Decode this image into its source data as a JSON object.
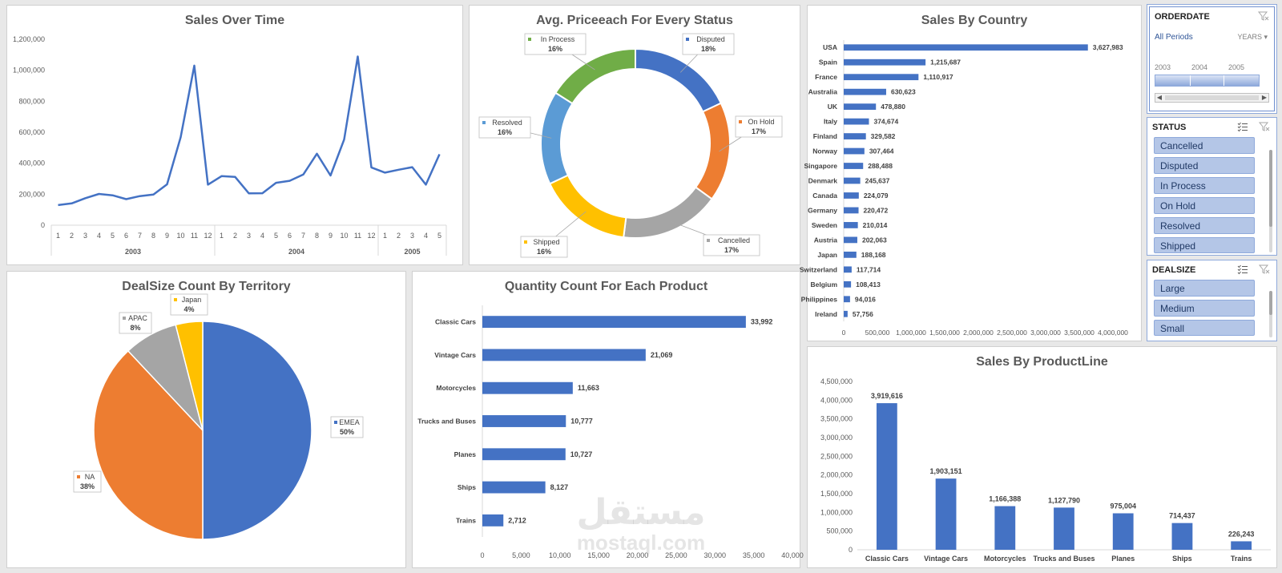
{
  "sales_over_time": {
    "title": "Sales Over Time",
    "type": "line",
    "color": "#4472c4",
    "yticks": [
      "0",
      "200,000",
      "400,000",
      "600,000",
      "800,000",
      "1,000,000",
      "1,200,000"
    ],
    "ylim": [
      0,
      1200000
    ],
    "months": [
      "1",
      "2",
      "3",
      "4",
      "5",
      "6",
      "7",
      "8",
      "9",
      "10",
      "11",
      "12",
      "1",
      "2",
      "3",
      "4",
      "5",
      "6",
      "7",
      "8",
      "9",
      "10",
      "11",
      "12",
      "1",
      "2",
      "3",
      "4",
      "5"
    ],
    "years": [
      {
        "label": "2003",
        "count": 12
      },
      {
        "label": "2004",
        "count": 12
      },
      {
        "label": "2005",
        "count": 5
      }
    ],
    "values": [
      129754,
      140837,
      174505,
      201610,
      192673,
      168083,
      187732,
      197810,
      263974,
      568291,
      1029838,
      261876,
      316577,
      311419,
      205734,
      206149,
      273438,
      286674,
      327144,
      461501,
      320751,
      552924,
      1089048,
      372803,
      339544,
      358186,
      374263,
      261634,
      457861
    ]
  },
  "avg_price_status": {
    "title": "Avg. Priceeach For Every Status",
    "type": "pie",
    "slices": [
      {
        "name": "Disputed",
        "pct": "18%",
        "value": 18,
        "color": "#4472c4"
      },
      {
        "name": "On Hold",
        "pct": "17%",
        "value": 17,
        "color": "#ed7d31"
      },
      {
        "name": "Cancelled",
        "pct": "17%",
        "value": 17,
        "color": "#a5a5a5"
      },
      {
        "name": "Shipped",
        "pct": "16%",
        "value": 16,
        "color": "#ffc000"
      },
      {
        "name": "Resolved",
        "pct": "16%",
        "value": 16,
        "color": "#5b9bd5"
      },
      {
        "name": "In Process",
        "pct": "16%",
        "value": 16,
        "color": "#70ad47"
      }
    ]
  },
  "sales_by_country": {
    "title": "Sales By Country",
    "type": "bar",
    "color": "#4472c4",
    "xlim": [
      0,
      4000000
    ],
    "xticks": [
      "0",
      "500,000",
      "1,000,000",
      "1,500,000",
      "2,000,000",
      "2,500,000",
      "3,000,000",
      "3,500,000",
      "4,000,000"
    ],
    "categories": [
      "USA",
      "Spain",
      "France",
      "Australia",
      "UK",
      "Italy",
      "Finland",
      "Norway",
      "Singapore",
      "Denmark",
      "Canada",
      "Germany",
      "Sweden",
      "Austria",
      "Japan",
      "Switzerland",
      "Belgium",
      "Philippines",
      "Ireland"
    ],
    "values": [
      3627983,
      1215687,
      1110917,
      630623,
      478880,
      374674,
      329582,
      307464,
      288488,
      245637,
      224079,
      220472,
      210014,
      202063,
      188168,
      117714,
      108413,
      94016,
      57756
    ],
    "labels": [
      "3,627,983",
      "1,215,687",
      "1,110,917",
      "630,623",
      "478,880",
      "374,674",
      "329,582",
      "307,464",
      "288,488",
      "245,637",
      "224,079",
      "220,472",
      "210,014",
      "202,063",
      "188,168",
      "117,714",
      "108,413",
      "94,016",
      "57,756"
    ]
  },
  "dealsize_territory": {
    "title": "DealSize Count By Territory",
    "type": "pie",
    "slices": [
      {
        "name": "EMEA",
        "pct": "50%",
        "value": 50,
        "color": "#4472c4"
      },
      {
        "name": "NA",
        "pct": "38%",
        "value": 38,
        "color": "#ed7d31"
      },
      {
        "name": "APAC",
        "pct": "8%",
        "value": 8,
        "color": "#a5a5a5"
      },
      {
        "name": "Japan",
        "pct": "4%",
        "value": 4,
        "color": "#ffc000"
      }
    ]
  },
  "quantity_product": {
    "title": "Quantity Count For Each Product",
    "type": "bar",
    "color": "#4472c4",
    "xlim": [
      0,
      40000
    ],
    "xticks": [
      "0",
      "5,000",
      "10,000",
      "15,000",
      "20,000",
      "25,000",
      "30,000",
      "35,000",
      "40,000"
    ],
    "categories": [
      "Classic Cars",
      "Vintage Cars",
      "Motorcycles",
      "Trucks and Buses",
      "Planes",
      "Ships",
      "Trains"
    ],
    "values": [
      33992,
      21069,
      11663,
      10777,
      10727,
      8127,
      2712
    ],
    "labels": [
      "33,992",
      "21,069",
      "11,663",
      "10,777",
      "10,727",
      "8,127",
      "2,712"
    ]
  },
  "sales_productline": {
    "title": "Sales By ProductLine",
    "type": "bar",
    "color": "#4472c4",
    "ylim": [
      0,
      4500000
    ],
    "yticks": [
      "0",
      "500,000",
      "1,000,000",
      "1,500,000",
      "2,000,000",
      "2,500,000",
      "3,000,000",
      "3,500,000",
      "4,000,000",
      "4,500,000"
    ],
    "categories": [
      "Classic Cars",
      "Vintage Cars",
      "Motorcycles",
      "Trucks and Buses",
      "Planes",
      "Ships",
      "Trains"
    ],
    "values": [
      3919616,
      1903151,
      1166388,
      1127790,
      975004,
      714437,
      226243
    ],
    "labels": [
      "3,919,616",
      "1,903,151",
      "1,166,388",
      "1,127,790",
      "975,004",
      "714,437",
      "226,243"
    ]
  },
  "slicers": {
    "orderdate": {
      "title": "ORDERDATE",
      "periods": "All Periods",
      "years_label": "YEARS",
      "years": [
        "2003",
        "2004",
        "2005"
      ]
    },
    "status": {
      "title": "STATUS",
      "items": [
        "Cancelled",
        "Disputed",
        "In Process",
        "On Hold",
        "Resolved",
        "Shipped"
      ]
    },
    "dealsize": {
      "title": "DEALSIZE",
      "items": [
        "Large",
        "Medium",
        "Small"
      ]
    }
  },
  "watermark": {
    "arabic": "مستقل",
    "latin": "mostaql.com"
  }
}
